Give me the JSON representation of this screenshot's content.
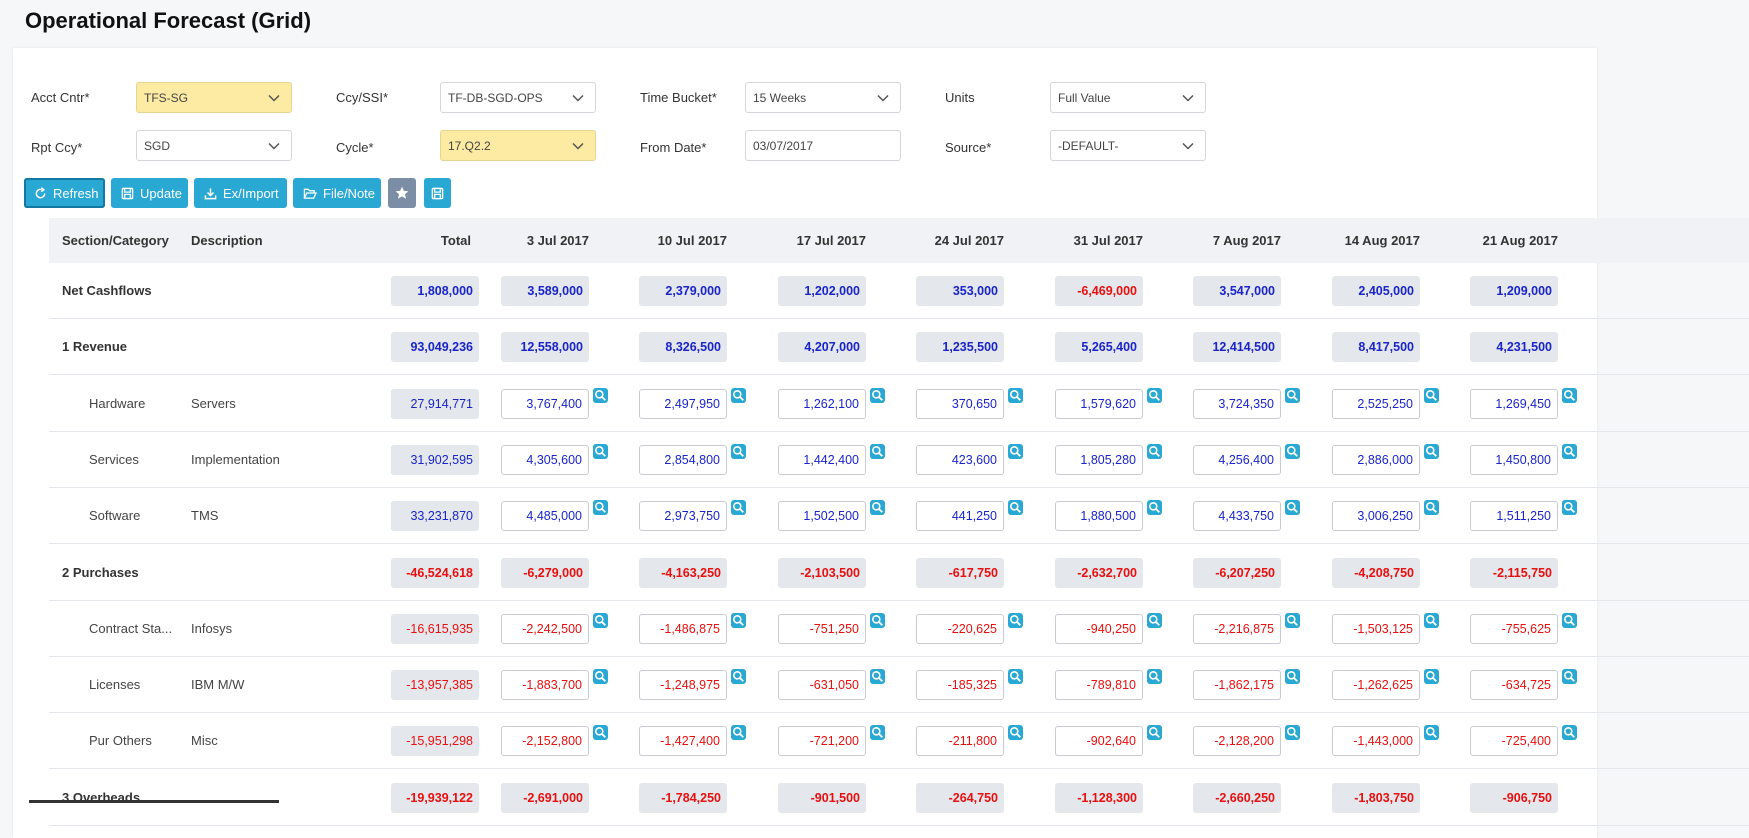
{
  "page_title": "Operational Forecast (Grid)",
  "filters": {
    "acct_cntr": {
      "label": "Acct Cntr*",
      "value": "TFS-SG"
    },
    "ccy_ssi": {
      "label": "Ccy/SSI*",
      "value": "TF-DB-SGD-OPS"
    },
    "time_bucket": {
      "label": "Time Bucket*",
      "value": "15 Weeks"
    },
    "units": {
      "label": "Units",
      "value": "Full Value"
    },
    "rpt_ccy": {
      "label": "Rpt Ccy*",
      "value": "SGD"
    },
    "cycle": {
      "label": "Cycle*",
      "value": "17.Q2.2"
    },
    "from_date": {
      "label": "From Date*",
      "value": "03/07/2017"
    },
    "source": {
      "label": "Source*",
      "value": "-DEFAULT-"
    }
  },
  "toolbar": {
    "refresh": "Refresh",
    "update": "Update",
    "eximport": "Ex/Import",
    "filenote": "File/Note"
  },
  "grid": {
    "headers": {
      "section": "Section/Category",
      "description": "Description",
      "total": "Total",
      "weeks": [
        "3 Jul 2017",
        "10 Jul 2017",
        "17 Jul 2017",
        "24 Jul 2017",
        "31 Jul 2017",
        "7 Aug 2017",
        "14 Aug 2017",
        "21 Aug 2017"
      ]
    },
    "rows": [
      {
        "kind": "section",
        "section": "Net Cashflows",
        "category": "",
        "description": "",
        "total": "1,808,000",
        "values": [
          "3,589,000",
          "2,379,000",
          "1,202,000",
          "353,000",
          "-6,469,000",
          "3,547,000",
          "2,405,000",
          "1,209,000"
        ]
      },
      {
        "kind": "section",
        "section": "1 Revenue",
        "category": "",
        "description": "",
        "total": "93,049,236",
        "values": [
          "12,558,000",
          "8,326,500",
          "4,207,000",
          "1,235,500",
          "5,265,400",
          "12,414,500",
          "8,417,500",
          "4,231,500"
        ]
      },
      {
        "kind": "item",
        "section": "",
        "category": "Hardware",
        "description": "Servers",
        "total": "27,914,771",
        "values": [
          "3,767,400",
          "2,497,950",
          "1,262,100",
          "370,650",
          "1,579,620",
          "3,724,350",
          "2,525,250",
          "1,269,450"
        ]
      },
      {
        "kind": "item",
        "section": "",
        "category": "Services",
        "description": "Implementation",
        "total": "31,902,595",
        "values": [
          "4,305,600",
          "2,854,800",
          "1,442,400",
          "423,600",
          "1,805,280",
          "4,256,400",
          "2,886,000",
          "1,450,800"
        ]
      },
      {
        "kind": "item",
        "section": "",
        "category": "Software",
        "description": "TMS",
        "total": "33,231,870",
        "values": [
          "4,485,000",
          "2,973,750",
          "1,502,500",
          "441,250",
          "1,880,500",
          "4,433,750",
          "3,006,250",
          "1,511,250"
        ]
      },
      {
        "kind": "section",
        "section": "2 Purchases",
        "category": "",
        "description": "",
        "total": "-46,524,618",
        "values": [
          "-6,279,000",
          "-4,163,250",
          "-2,103,500",
          "-617,750",
          "-2,632,700",
          "-6,207,250",
          "-4,208,750",
          "-2,115,750"
        ]
      },
      {
        "kind": "item",
        "section": "",
        "category": "Contract Sta...",
        "description": "Infosys",
        "total": "-16,615,935",
        "values": [
          "-2,242,500",
          "-1,486,875",
          "-751,250",
          "-220,625",
          "-940,250",
          "-2,216,875",
          "-1,503,125",
          "-755,625"
        ]
      },
      {
        "kind": "item",
        "section": "",
        "category": "Licenses",
        "description": "IBM M/W",
        "total": "-13,957,385",
        "values": [
          "-1,883,700",
          "-1,248,975",
          "-631,050",
          "-185,325",
          "-789,810",
          "-1,862,175",
          "-1,262,625",
          "-634,725"
        ]
      },
      {
        "kind": "item",
        "section": "",
        "category": "Pur Others",
        "description": "Misc",
        "total": "-15,951,298",
        "values": [
          "-2,152,800",
          "-1,427,400",
          "-721,200",
          "-211,800",
          "-902,640",
          "-2,128,200",
          "-1,443,000",
          "-725,400"
        ]
      },
      {
        "kind": "section",
        "section": "3 Overheads",
        "category": "",
        "description": "",
        "total": "-19,939,122",
        "values": [
          "-2,691,000",
          "-1,784,250",
          "-901,500",
          "-264,750",
          "-1,128,300",
          "-2,660,250",
          "-1,803,750",
          "-906,750"
        ]
      }
    ]
  },
  "colors": {
    "positive": "#1a24c9",
    "negative": "#e80f0f",
    "accent": "#2aa8d4",
    "highlight_field": "#fdeaa3"
  },
  "icons": {
    "row_action": "magnifier-icon",
    "dropdown": "chevron-down-icon"
  }
}
